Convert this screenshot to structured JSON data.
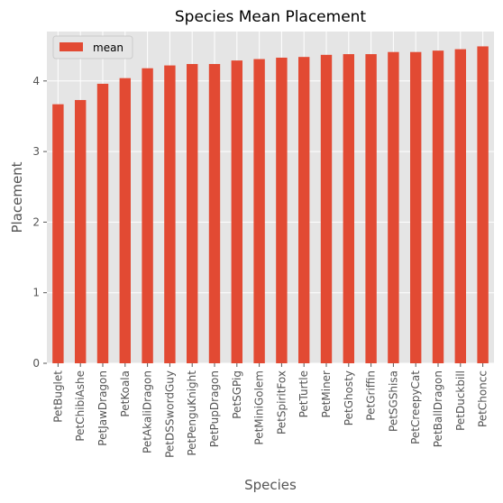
{
  "chart_data": {
    "type": "bar",
    "title": "Species Mean Placement",
    "xlabel": "Species",
    "ylabel": "Placement",
    "ylim": [
      0,
      4.7
    ],
    "yticks": [
      0,
      1,
      2,
      3,
      4
    ],
    "grid": true,
    "legend_position": "top-left",
    "categories": [
      "PetBuglet",
      "PetChibiAshe",
      "PetJawDragon",
      "PetKoala",
      "PetAkaliDragon",
      "PetDSSwordGuy",
      "PetPenguKnight",
      "PetPupDragon",
      "PetSGPig",
      "PetMiniGolem",
      "PetSpiritFox",
      "PetTurtle",
      "PetMiner",
      "PetGhosty",
      "PetGriffin",
      "PetSGShisa",
      "PetCreepyCat",
      "PetBallDragon",
      "PetDuckbill",
      "PetChoncc"
    ],
    "series": [
      {
        "name": "mean",
        "color": "#E24A33",
        "values": [
          3.67,
          3.73,
          3.96,
          4.04,
          4.18,
          4.22,
          4.24,
          4.24,
          4.29,
          4.31,
          4.33,
          4.34,
          4.37,
          4.38,
          4.38,
          4.41,
          4.41,
          4.43,
          4.45,
          4.49
        ]
      }
    ]
  },
  "colors": {
    "plot_background": "#E5E5E5",
    "grid": "#FFFFFF",
    "bar": "#E24A33"
  }
}
